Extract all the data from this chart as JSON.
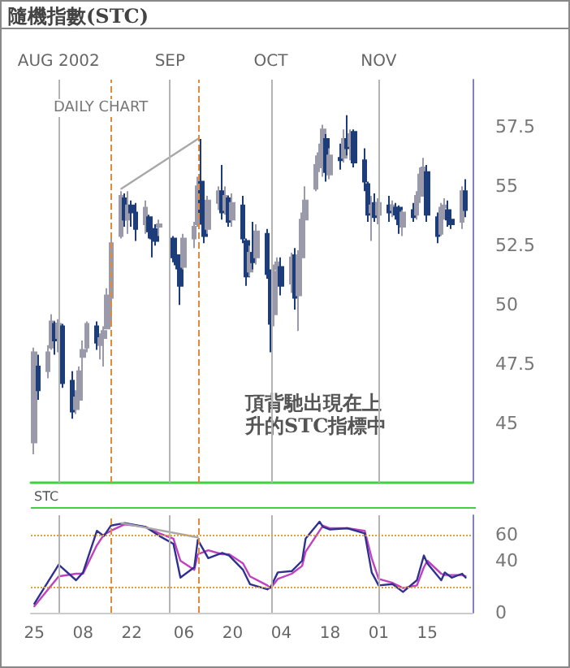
{
  "chart_data": [
    {
      "type": "candlestick",
      "title": "隨機指數(STC)",
      "subtitle": "DAILY CHART",
      "annotations": [
        "頂背馳出現在上升的STC指標中"
      ],
      "xlim": [
        "2002-07-24",
        "2002-11-28"
      ],
      "ylim": [
        42.5,
        59.5
      ],
      "yticks": [
        45,
        47.5,
        50,
        52.5,
        55,
        57.5
      ],
      "tick_labels": "y",
      "grid": false,
      "ref_lines": [
        {
          "axis": "x",
          "value": "2002-08-01",
          "label": "AUG 2002",
          "color": "#b4b4b4"
        },
        {
          "axis": "x",
          "value": "2002-09-02",
          "label": "SEP",
          "color": "#b4b4b4"
        },
        {
          "axis": "x",
          "value": "2002-10-01",
          "label": "OCT",
          "color": "#b4b4b4"
        },
        {
          "axis": "x",
          "value": "2002-11-01",
          "label": "NOV",
          "color": "#b4b4b4"
        },
        {
          "axis": "x",
          "value": "2002-08-16",
          "label": null,
          "color": "#e08a3c",
          "line_style": "dashed"
        },
        {
          "axis": "x",
          "value": "2002-09-10",
          "label": null,
          "color": "#e08a3c",
          "line_style": "dashed"
        }
      ],
      "series": [
        {
          "type": "candlestick",
          "colors": [
            "#9a9aaa",
            "#1c3c7a",
            "#9a9aaa",
            "#9a9aaa",
            "#1c3c7a",
            "#9a9aaa",
            "#1c3c7a",
            "#1c3c7a",
            "#9a9aaa",
            "#9a9aaa",
            "#9a9aaa",
            "#9a9aaa",
            "#1c3c7a",
            "#9a9aaa",
            "#9a9aaa",
            "#9a9aaa",
            "#9a9aaa",
            "#9a9aaa",
            "#1c3c7a",
            "#9a9aaa",
            "#1c3c7a",
            "#1c3c7a",
            "#9a9aaa",
            "#1c3c7a",
            "#1c3c7a",
            "#1c3c7a",
            "#9a9aaa",
            "#1c3c7a",
            "#1c3c7a",
            "#1c3c7a",
            "#9a9aaa",
            "#9a9aaa",
            "#9a9aaa",
            "#1c3c7a",
            "#1c3c7a",
            "#9a9aaa",
            "#9a9aaa",
            "#1c3c7a",
            "#9a9aaa",
            "#1c3c7a",
            "#9a9aaa",
            "#1c3c7a",
            "#1c3c7a",
            "#9a9aaa",
            "#1c3c7a",
            "#9a9aaa",
            "#1c3c7a",
            "#1c3c7a",
            "#9a9aaa",
            "#9a9aaa",
            "#1c3c7a",
            "#9a9aaa",
            "#1c3c7a",
            "#9a9aaa",
            "#9a9aaa",
            "#9a9aaa",
            "#9a9aaa",
            "#9a9aaa",
            "#9a9aaa",
            "#1c3c7a",
            "#9a9aaa",
            "#1c3c7a",
            "#9a9aaa",
            "#1c3c7a",
            "#9a9aaa",
            "#1c3c7a",
            "#1c3c7a",
            "#1c3c7a",
            "#9a9aaa",
            "#1c3c7a",
            "#9a9aaa",
            "#1c3c7a",
            "#9a9aaa",
            "#1c3c7a",
            "#1c3c7a",
            "#9a9aaa",
            "#1c3c7a",
            "#9a9aaa",
            "#9a9aaa",
            "#9a9aaa",
            "#1c3c7a",
            "#1c3c7a",
            "#9a9aaa",
            "#9a9aaa",
            "#1c3c7a",
            "#1c3c7a",
            "#9a9aaa",
            "#1c3c7a"
          ],
          "x": [
            "2002-07-25",
            "2002-07-26",
            "2002-07-29",
            "2002-07-30",
            "2002-07-31",
            "2002-08-01",
            "2002-08-02",
            "2002-08-05",
            "2002-08-06",
            "2002-08-07",
            "2002-08-08",
            "2002-08-09",
            "2002-08-12",
            "2002-08-13",
            "2002-08-14",
            "2002-08-15",
            "2002-08-16",
            "2002-08-19",
            "2002-08-20",
            "2002-08-21",
            "2002-08-22",
            "2002-08-23",
            "2002-08-26",
            "2002-08-27",
            "2002-08-28",
            "2002-08-29",
            "2002-08-30",
            "2002-09-03",
            "2002-09-04",
            "2002-09-05",
            "2002-09-06",
            "2002-09-09",
            "2002-09-10",
            "2002-09-11",
            "2002-09-12",
            "2002-09-13",
            "2002-09-16",
            "2002-09-17",
            "2002-09-18",
            "2002-09-19",
            "2002-09-20",
            "2002-09-23",
            "2002-09-24",
            "2002-09-25",
            "2002-09-26",
            "2002-09-27",
            "2002-09-30",
            "2002-10-01",
            "2002-10-02",
            "2002-10-03",
            "2002-10-04",
            "2002-10-07",
            "2002-10-08",
            "2002-10-09",
            "2002-10-10",
            "2002-10-11",
            "2002-10-14",
            "2002-10-15",
            "2002-10-16",
            "2002-10-17",
            "2002-10-18",
            "2002-10-21",
            "2002-10-22",
            "2002-10-23",
            "2002-10-24",
            "2002-10-25",
            "2002-10-28",
            "2002-10-29",
            "2002-10-30",
            "2002-10-31",
            "2002-11-01",
            "2002-11-04",
            "2002-11-05",
            "2002-11-06",
            "2002-11-07",
            "2002-11-08",
            "2002-11-11",
            "2002-11-12",
            "2002-11-13",
            "2002-11-14",
            "2002-11-15",
            "2002-11-18",
            "2002-11-19",
            "2002-11-20",
            "2002-11-21",
            "2002-11-22",
            "2002-11-25",
            "2002-11-26"
          ],
          "ohlc": [
            [
              44.2,
              48.2,
              43.7,
              48.0
            ],
            [
              47.4,
              47.9,
              46.0,
              46.4
            ],
            [
              47.2,
              48.3,
              46.9,
              48.0
            ],
            [
              48.2,
              49.6,
              48.1,
              49.3
            ],
            [
              49.2,
              49.3,
              47.9,
              48.5
            ],
            [
              48.6,
              49.4,
              48.0,
              49.2
            ],
            [
              49.1,
              49.2,
              46.5,
              46.7
            ],
            [
              46.8,
              47.2,
              45.2,
              45.5
            ],
            [
              45.6,
              46.4,
              45.4,
              46.1
            ],
            [
              46.0,
              47.4,
              45.7,
              47.2
            ],
            [
              47.8,
              48.5,
              46.5,
              48.1
            ],
            [
              48.2,
              49.3,
              48.0,
              49.2
            ],
            [
              49.1,
              49.3,
              48.1,
              48.4
            ],
            [
              48.3,
              48.8,
              47.7,
              48.6
            ],
            [
              48.6,
              49.1,
              47.4,
              48.9
            ],
            [
              49.0,
              50.7,
              49.0,
              50.4
            ],
            [
              50.3,
              52.8,
              49.3,
              52.6
            ],
            [
              52.9,
              54.8,
              52.8,
              54.6
            ],
            [
              54.5,
              54.7,
              53.3,
              53.6
            ],
            [
              53.6,
              54.8,
              53.0,
              54.2
            ],
            [
              54.2,
              54.4,
              53.3,
              53.9
            ],
            [
              53.9,
              54.3,
              52.7,
              53.2
            ],
            [
              53.4,
              54.4,
              53.0,
              54.1
            ],
            [
              53.7,
              53.8,
              52.8,
              53.1
            ],
            [
              53.2,
              53.6,
              52.0,
              52.8
            ],
            [
              53.2,
              53.4,
              52.5,
              52.7
            ],
            [
              53.3,
              53.6,
              52.9,
              53.4
            ],
            [
              52.8,
              52.9,
              51.8,
              52.0
            ],
            [
              52.1,
              52.4,
              51.5,
              51.7
            ],
            [
              51.8,
              51.9,
              50.0,
              50.8
            ],
            [
              51.6,
              53.0,
              51.5,
              52.8
            ],
            [
              52.8,
              53.5,
              52.4,
              53.3
            ],
            [
              53.4,
              55.4,
              53.3,
              55.0
            ],
            [
              55.2,
              57.0,
              53.4,
              53.8
            ],
            [
              53.8,
              54.3,
              52.6,
              52.9
            ],
            [
              53.2,
              54.6,
              53.0,
              54.4
            ],
            [
              54.3,
              55.0,
              54.0,
              54.8
            ],
            [
              54.8,
              55.9,
              53.6,
              53.9
            ],
            [
              54.0,
              55.0,
              53.8,
              54.6
            ],
            [
              54.5,
              54.6,
              53.3,
              53.5
            ],
            [
              53.6,
              54.7,
              53.3,
              54.3
            ],
            [
              54.2,
              54.6,
              52.6,
              52.8
            ],
            [
              52.7,
              52.8,
              50.8,
              51.2
            ],
            [
              51.4,
              52.5,
              51.2,
              52.2
            ],
            [
              52.2,
              53.5,
              51.5,
              51.8
            ],
            [
              52.0,
              53.4,
              51.7,
              53.1
            ],
            [
              53.0,
              53.2,
              51.1,
              51.3
            ],
            [
              51.4,
              51.5,
              48.0,
              49.2
            ],
            [
              49.6,
              51.7,
              49.1,
              51.4
            ],
            [
              51.5,
              52.0,
              51.0,
              51.8
            ],
            [
              51.6,
              52.0,
              50.4,
              50.8
            ],
            [
              50.9,
              52.2,
              50.5,
              52.0
            ],
            [
              52.1,
              52.4,
              49.8,
              50.3
            ],
            [
              50.4,
              52.3,
              48.9,
              52.1
            ],
            [
              52.0,
              53.9,
              51.6,
              53.6
            ],
            [
              53.6,
              55.0,
              53.5,
              54.4
            ],
            [
              54.9,
              56.3,
              54.8,
              55.9
            ],
            [
              55.8,
              56.8,
              55.6,
              56.4
            ],
            [
              56.4,
              57.6,
              55.4,
              57.4
            ],
            [
              57.0,
              57.2,
              55.2,
              55.6
            ],
            [
              55.5,
              56.6,
              55.3,
              56.3
            ],
            [
              56.2,
              56.8,
              55.7,
              56.1
            ],
            [
              56.2,
              57.4,
              56.0,
              57.0
            ],
            [
              57.0,
              58.0,
              56.3,
              56.6
            ],
            [
              56.7,
              57.4,
              56.1,
              57.2
            ],
            [
              57.3,
              57.4,
              55.8,
              56.0
            ],
            [
              56.1,
              56.6,
              54.8,
              55.2
            ],
            [
              55.1,
              55.2,
              53.5,
              53.8
            ],
            [
              53.9,
              54.6,
              52.7,
              54.2
            ],
            [
              54.3,
              54.7,
              53.5,
              53.7
            ],
            [
              53.8,
              54.5,
              53.4,
              54.3
            ],
            [
              54.2,
              54.6,
              53.5,
              53.9
            ],
            [
              54.0,
              54.4,
              53.7,
              54.2
            ],
            [
              54.1,
              54.3,
              53.6,
              53.8
            ],
            [
              54.1,
              54.2,
              53.0,
              53.4
            ],
            [
              53.3,
              54.0,
              52.9,
              53.9
            ],
            [
              54.0,
              54.3,
              53.5,
              53.7
            ],
            [
              53.8,
              54.8,
              53.6,
              54.6
            ],
            [
              54.6,
              55.8,
              54.3,
              55.5
            ],
            [
              55.4,
              56.2,
              55.1,
              55.8
            ],
            [
              55.6,
              55.9,
              53.5,
              53.8
            ],
            [
              53.7,
              53.9,
              52.6,
              52.9
            ],
            [
              53.0,
              54.3,
              52.9,
              54.1
            ],
            [
              54.1,
              54.5,
              53.6,
              54.2
            ],
            [
              54.0,
              54.4,
              53.3,
              53.6
            ],
            [
              53.6,
              54.0,
              53.2,
              53.4
            ],
            [
              53.5,
              55.0,
              53.2,
              54.8
            ],
            [
              54.8,
              55.3,
              53.7,
              54.0
            ]
          ]
        },
        {
          "type": "line",
          "color": "#a8a8a8",
          "x": [
            "2002-08-19",
            "2002-09-10"
          ],
          "values": [
            54.9,
            57.0
          ]
        }
      ]
    },
    {
      "type": "line",
      "title": "STC",
      "xlim": [
        "2002-07-24",
        "2002-11-28"
      ],
      "ylim": [
        0,
        75
      ],
      "yticks": [
        0,
        40,
        60
      ],
      "grid": false,
      "marker": "none",
      "xticks": [
        {
          "value": "2002-07-25",
          "label": "25"
        },
        {
          "value": "2002-08-08",
          "label": "08"
        },
        {
          "value": "2002-08-22",
          "label": "22"
        },
        {
          "value": "2002-09-06",
          "label": "06"
        },
        {
          "value": "2002-09-20",
          "label": "20"
        },
        {
          "value": "2002-10-04",
          "label": "04"
        },
        {
          "value": "2002-10-18",
          "label": "18"
        },
        {
          "value": "2002-11-01",
          "label": "01"
        },
        {
          "value": "2002-11-15",
          "label": "15"
        }
      ],
      "ref_lines": [
        {
          "axis": "x",
          "value": "2002-08-01",
          "label": null,
          "color": "#b4b4b4"
        },
        {
          "axis": "x",
          "value": "2002-09-02",
          "label": null,
          "color": "#b4b4b4"
        },
        {
          "axis": "x",
          "value": "2002-10-01",
          "label": null,
          "color": "#b4b4b4"
        },
        {
          "axis": "x",
          "value": "2002-11-01",
          "label": null,
          "color": "#b4b4b4"
        },
        {
          "axis": "x",
          "value": "2002-08-16",
          "label": null,
          "color": "#e08a3c",
          "line_style": "dashed"
        },
        {
          "axis": "x",
          "value": "2002-09-10",
          "label": null,
          "color": "#e08a3c",
          "line_style": "dashed"
        },
        {
          "axis": "y",
          "value": 60,
          "label": null,
          "color": "#e0a040",
          "line_style": "dotted"
        },
        {
          "axis": "y",
          "value": 20,
          "label": null,
          "color": "#e0a040",
          "line_style": "dotted"
        }
      ],
      "series": [
        {
          "color": "#c040c0",
          "x": [
            "2002-07-25",
            "2002-08-01",
            "2002-08-06",
            "2002-08-08",
            "2002-08-12",
            "2002-08-14",
            "2002-08-16",
            "2002-08-20",
            "2002-08-26",
            "2002-08-30",
            "2002-09-03",
            "2002-09-05",
            "2002-09-09",
            "2002-09-10",
            "2002-09-13",
            "2002-09-17",
            "2002-09-19",
            "2002-09-23",
            "2002-09-25",
            "2002-09-30",
            "2002-10-01",
            "2002-10-03",
            "2002-10-07",
            "2002-10-10",
            "2002-10-11",
            "2002-10-15",
            "2002-10-16",
            "2002-10-18",
            "2002-10-23",
            "2002-10-28",
            "2002-10-30",
            "2002-11-01",
            "2002-11-05",
            "2002-11-08",
            "2002-11-12",
            "2002-11-14",
            "2002-11-15",
            "2002-11-19",
            "2002-11-20",
            "2002-11-22",
            "2002-11-25",
            "2002-11-26"
          ],
          "values": [
            5,
            28,
            30,
            30,
            52,
            60,
            63,
            68,
            66,
            61,
            57,
            40,
            33,
            45,
            48,
            45,
            45,
            38,
            28,
            21,
            19,
            26,
            30,
            36,
            47,
            63,
            67,
            65,
            65,
            63,
            42,
            26,
            23,
            19,
            21,
            35,
            40,
            30,
            29,
            29,
            29,
            28
          ]
        },
        {
          "color": "#303090",
          "x": [
            "2002-07-25",
            "2002-08-01",
            "2002-08-06",
            "2002-08-08",
            "2002-08-12",
            "2002-08-14",
            "2002-08-16",
            "2002-08-20",
            "2002-08-26",
            "2002-08-30",
            "2002-09-03",
            "2002-09-05",
            "2002-09-09",
            "2002-09-10",
            "2002-09-13",
            "2002-09-17",
            "2002-09-19",
            "2002-09-23",
            "2002-09-25",
            "2002-09-30",
            "2002-10-01",
            "2002-10-03",
            "2002-10-07",
            "2002-10-10",
            "2002-10-11",
            "2002-10-15",
            "2002-10-16",
            "2002-10-18",
            "2002-10-23",
            "2002-10-28",
            "2002-10-30",
            "2002-11-01",
            "2002-11-05",
            "2002-11-08",
            "2002-11-12",
            "2002-11-14",
            "2002-11-15",
            "2002-11-19",
            "2002-11-20",
            "2002-11-22",
            "2002-11-25",
            "2002-11-26"
          ],
          "values": [
            7,
            37,
            25,
            31,
            63,
            59,
            67,
            69,
            66,
            59,
            53,
            27,
            35,
            56,
            42,
            46,
            44,
            33,
            22,
            18,
            20,
            31,
            32,
            40,
            57,
            70,
            66,
            64,
            65,
            61,
            31,
            21,
            22,
            16,
            25,
            44,
            38,
            25,
            31,
            27,
            30,
            27
          ]
        },
        {
          "color": "#a8a8a8",
          "x": [
            "2002-08-19",
            "2002-09-10"
          ],
          "values": [
            69,
            58
          ]
        }
      ]
    }
  ]
}
